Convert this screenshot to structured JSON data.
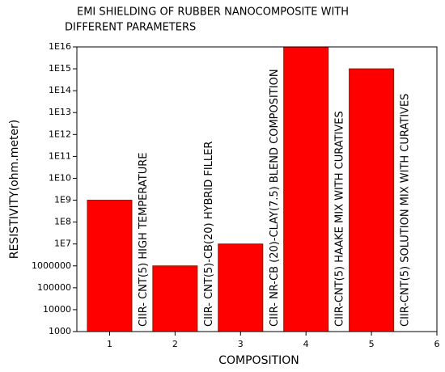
{
  "chart_data": {
    "type": "bar",
    "title": [
      "EMI SHIELDING OF RUBBER  NANOCOMPOSITE WITH",
      "DIFFERENT PARAMETERS"
    ],
    "x_label": "COMPOSITION",
    "y_label": "RESISTIVITY(ohm.meter)",
    "x": [
      1,
      2,
      3,
      4,
      5
    ],
    "values": [
      1000000000,
      1000000,
      10000000,
      10000000000000000,
      1000000000000000
    ],
    "annotations": [
      "CIIR- CNT(5) HIGH TEMPERATURE",
      "CIIR- CNT(5)-CB(20) HYBRID FILLER",
      "CIIR- NR-CB (20)-CLAY(7.5) BLEND COMPOSITION",
      "CIIR-CNT(5) HAAKE MIX WITH CURATIVES",
      "CIIR-CNT(5) SOLUTION MIX WITH CURATIVES"
    ],
    "color": "#ff0000",
    "log_y": true,
    "xlim": [
      0.5,
      6
    ],
    "xticks": [
      1,
      2,
      3,
      4,
      5,
      6
    ],
    "ylim": [
      1000,
      10000000000000000
    ],
    "yticks": [
      1000,
      10000,
      100000,
      1000000,
      {
        "value": 10000000,
        "label": "1E7"
      },
      {
        "value": 100000000,
        "label": "1E8"
      },
      {
        "value": 1000000000,
        "label": "1E9"
      },
      {
        "value": 10000000000,
        "label": "1E10"
      },
      {
        "value": 100000000000,
        "label": "1E11"
      },
      {
        "value": 1000000000000,
        "label": "1E12"
      },
      {
        "value": 10000000000000,
        "label": "1E13"
      },
      {
        "value": 100000000000000,
        "label": "1E14"
      },
      {
        "value": 1000000000000000,
        "label": "1E15"
      },
      {
        "value": 10000000000000000,
        "label": "1E16"
      }
    ]
  }
}
